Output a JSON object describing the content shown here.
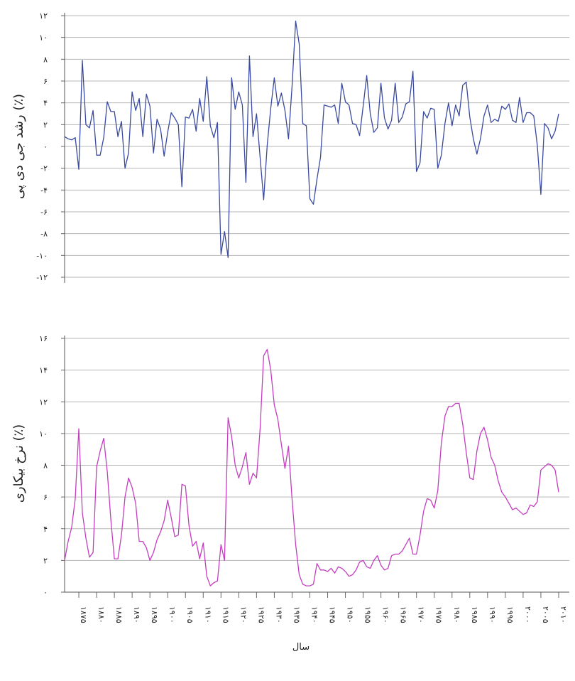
{
  "chart_data": [
    {
      "type": "line",
      "ylabel": "رشد جی دی پی (٪)",
      "ylim": [
        -12,
        12
      ],
      "yticks": [
        12,
        10,
        8,
        6,
        4,
        2,
        0,
        -2,
        -4,
        -6,
        -8,
        -10,
        -12
      ],
      "ytick_labels": [
        "۱۲",
        "۱۰",
        "۸",
        "۶",
        "۴",
        "۲",
        "۰",
        "-۲",
        "-۴",
        "-۶",
        "-۸",
        "-۱۰",
        "-۱۲"
      ],
      "grid": true,
      "color": "#3a4aa0",
      "x_start": 1871,
      "x_end": 2013,
      "values": [
        0.9,
        0.7,
        0.6,
        0.8,
        -2.1,
        7.9,
        2.0,
        1.7,
        3.3,
        -0.8,
        -0.8,
        0.8,
        4.1,
        3.2,
        3.2,
        0.9,
        2.3,
        -2.0,
        -0.6,
        5.0,
        3.3,
        4.4,
        0.9,
        4.8,
        3.7,
        -0.6,
        2.5,
        1.6,
        -0.9,
        1.3,
        3.1,
        2.6,
        2.0,
        -3.7,
        2.7,
        2.6,
        3.4,
        1.4,
        4.4,
        2.3,
        6.4,
        1.9,
        0.8,
        2.2,
        -9.9,
        -7.8,
        -10.2,
        6.3,
        3.4,
        5.0,
        3.8,
        -3.3,
        8.3,
        0.9,
        3.0,
        -1.0,
        -4.9,
        0.1,
        3.5,
        6.3,
        3.7,
        4.9,
        3.3,
        0.7,
        5.6,
        11.5,
        9.4,
        2.1,
        1.9,
        -4.8,
        -5.3,
        -3.0,
        -1.0,
        3.8,
        3.7,
        3.6,
        3.8,
        2.1,
        5.8,
        4.1,
        3.8,
        2.1,
        2.0,
        1.0,
        3.7,
        6.5,
        3.0,
        1.3,
        1.7,
        5.8,
        2.6,
        1.6,
        2.4,
        5.8,
        2.2,
        2.7,
        3.9,
        4.1,
        6.9,
        -2.3,
        -1.5,
        3.2,
        2.6,
        3.5,
        3.4,
        -2.0,
        -0.8,
        2.1,
        4.0,
        1.9,
        3.8,
        2.8,
        5.6,
        5.9,
        2.7,
        0.7,
        -0.7,
        0.7,
        2.8,
        3.8,
        2.2,
        2.5,
        2.3,
        3.7,
        3.4,
        3.9,
        2.4,
        2.2,
        4.5,
        2.2,
        3.1,
        3.1,
        2.8,
        0.1,
        -4.4,
        2.1,
        1.7,
        0.7,
        1.4,
        3.0
      ]
    },
    {
      "type": "line",
      "ylabel": "نرخ بیکاری (٪)",
      "xlabel": "سال",
      "ylim": [
        0,
        16
      ],
      "yticks": [
        16,
        14,
        12,
        10,
        8,
        6,
        4,
        2,
        0
      ],
      "ytick_labels": [
        "۱۶",
        "۱۴",
        "۱۲",
        "۱۰",
        "۸",
        "۶",
        "۴",
        "۲",
        "۰"
      ],
      "grid": true,
      "color": "#c43ec0",
      "x_start": 1871,
      "x_end": 2013,
      "x_ticks": [
        1875,
        1880,
        1885,
        1890,
        1895,
        1900,
        1905,
        1910,
        1915,
        1920,
        1925,
        1930,
        1935,
        1940,
        1945,
        1950,
        1955,
        1960,
        1965,
        1970,
        1975,
        1980,
        1985,
        1990,
        1995,
        2000,
        2005,
        2010
      ],
      "x_tick_labels": [
        "۱۸۷۵",
        "۱۸۸۰",
        "۱۸۸۵",
        "۱۸۹۰",
        "۱۸۹۵",
        "۱۹۰۰",
        "۱۹۰۵",
        "۱۹۱۰",
        "۱۹۱۵",
        "۱۹۲۰",
        "۱۹۲۵",
        "۱۹۳۰",
        "۱۹۳۵",
        "۱۹۴۰",
        "۱۹۴۵",
        "۱۹۵۰",
        "۱۹۵۵",
        "۱۹۶۰",
        "۱۹۶۵",
        "۱۹۷۰",
        "۱۹۷۵",
        "۱۹۸۰",
        "۱۹۸۵",
        "۱۹۹۰",
        "۱۹۹۵",
        "۲۰۰۰",
        "۲۰۰۵",
        "۲۰۱۰"
      ],
      "values": [
        2.0,
        3.2,
        4.1,
        5.9,
        10.3,
        5.0,
        3.4,
        2.2,
        2.5,
        7.9,
        8.9,
        9.7,
        7.6,
        4.6,
        2.1,
        2.1,
        3.6,
        6.0,
        7.2,
        6.6,
        5.6,
        3.2,
        3.2,
        2.8,
        2.0,
        2.5,
        3.3,
        3.8,
        4.5,
        5.8,
        4.7,
        3.5,
        3.6,
        6.8,
        6.7,
        4.2,
        2.9,
        3.2,
        2.1,
        3.1,
        1.0,
        0.4,
        0.6,
        0.7,
        3.0,
        2.0,
        11.0,
        9.8,
        8.0,
        7.2,
        7.9,
        8.8,
        6.8,
        7.5,
        7.2,
        10.3,
        14.9,
        15.3,
        14.0,
        11.8,
        10.9,
        9.3,
        7.8,
        9.2,
        5.8,
        3.0,
        1.1,
        0.5,
        0.4,
        0.4,
        0.5,
        1.8,
        1.4,
        1.4,
        1.3,
        1.5,
        1.2,
        1.6,
        1.5,
        1.3,
        1.0,
        1.1,
        1.4,
        1.9,
        2.0,
        1.6,
        1.5,
        2.0,
        2.3,
        1.7,
        1.4,
        1.5,
        2.3,
        2.4,
        2.4,
        2.6,
        3.0,
        3.4,
        2.4,
        2.4,
        3.6,
        5.1,
        5.9,
        5.8,
        5.3,
        6.4,
        9.4,
        11.1,
        11.7,
        11.7,
        11.9,
        11.9,
        10.6,
        8.8,
        7.2,
        7.1,
        8.9,
        10.0,
        10.4,
        9.6,
        8.5,
        8.0,
        7.0,
        6.3,
        6.0,
        5.6,
        5.2,
        5.3,
        5.1,
        4.9,
        5.0,
        5.5,
        5.4,
        5.7,
        7.7,
        7.9,
        8.1,
        8.0,
        7.7,
        6.3
      ]
    }
  ]
}
